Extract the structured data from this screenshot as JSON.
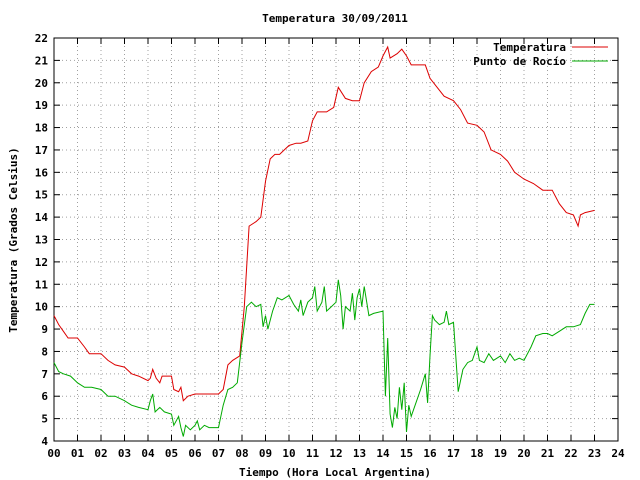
{
  "chart_data": {
    "type": "line",
    "title": "Temperatura 30/09/2011",
    "xlabel": "Tiempo (Hora Local Argentina)",
    "ylabel": "Temperatura (Grados Celsius)",
    "xlim": [
      0,
      24
    ],
    "ylim": [
      4,
      22
    ],
    "x_ticks": [
      0,
      1,
      2,
      3,
      4,
      5,
      6,
      7,
      8,
      9,
      10,
      11,
      12,
      13,
      14,
      15,
      16,
      17,
      18,
      19,
      20,
      21,
      22,
      23,
      24
    ],
    "x_tick_labels": [
      "00",
      "01",
      "02",
      "03",
      "04",
      "05",
      "06",
      "07",
      "08",
      "09",
      "10",
      "11",
      "12",
      "13",
      "14",
      "15",
      "16",
      "17",
      "18",
      "19",
      "20",
      "21",
      "22",
      "23",
      "24"
    ],
    "y_ticks": [
      4,
      5,
      6,
      7,
      8,
      9,
      10,
      11,
      12,
      13,
      14,
      15,
      16,
      17,
      18,
      19,
      20,
      21,
      22
    ],
    "y_tick_labels": [
      "4",
      "5",
      "6",
      "7",
      "8",
      "9",
      "10",
      "11",
      "12",
      "13",
      "14",
      "15",
      "16",
      "17",
      "18",
      "19",
      "20",
      "21",
      "22"
    ],
    "grid": true,
    "legend_position": "top-right",
    "series": [
      {
        "name": "Temperatura",
        "color": "#dd0000",
        "points": [
          [
            0.0,
            9.6
          ],
          [
            0.2,
            9.2
          ],
          [
            0.4,
            8.9
          ],
          [
            0.6,
            8.6
          ],
          [
            1.0,
            8.6
          ],
          [
            1.3,
            8.2
          ],
          [
            1.5,
            7.9
          ],
          [
            2.0,
            7.9
          ],
          [
            2.3,
            7.6
          ],
          [
            2.6,
            7.4
          ],
          [
            3.0,
            7.3
          ],
          [
            3.3,
            7.0
          ],
          [
            3.6,
            6.9
          ],
          [
            4.0,
            6.7
          ],
          [
            4.1,
            6.8
          ],
          [
            4.2,
            7.2
          ],
          [
            4.35,
            6.8
          ],
          [
            4.5,
            6.6
          ],
          [
            4.6,
            6.9
          ],
          [
            5.0,
            6.9
          ],
          [
            5.1,
            6.3
          ],
          [
            5.3,
            6.2
          ],
          [
            5.4,
            6.4
          ],
          [
            5.5,
            5.8
          ],
          [
            5.7,
            6.0
          ],
          [
            6.0,
            6.1
          ],
          [
            6.3,
            6.1
          ],
          [
            6.6,
            6.1
          ],
          [
            7.0,
            6.1
          ],
          [
            7.2,
            6.3
          ],
          [
            7.4,
            7.4
          ],
          [
            7.6,
            7.6
          ],
          [
            7.9,
            7.8
          ],
          [
            8.1,
            10.0
          ],
          [
            8.3,
            13.6
          ],
          [
            8.6,
            13.8
          ],
          [
            8.8,
            14.0
          ],
          [
            9.0,
            15.6
          ],
          [
            9.2,
            16.6
          ],
          [
            9.4,
            16.8
          ],
          [
            9.6,
            16.8
          ],
          [
            9.8,
            17.0
          ],
          [
            10.0,
            17.2
          ],
          [
            10.3,
            17.3
          ],
          [
            10.5,
            17.3
          ],
          [
            10.8,
            17.4
          ],
          [
            11.0,
            18.3
          ],
          [
            11.2,
            18.7
          ],
          [
            11.6,
            18.7
          ],
          [
            11.9,
            18.9
          ],
          [
            12.1,
            19.8
          ],
          [
            12.4,
            19.3
          ],
          [
            12.7,
            19.2
          ],
          [
            13.0,
            19.2
          ],
          [
            13.2,
            20.0
          ],
          [
            13.5,
            20.5
          ],
          [
            13.8,
            20.7
          ],
          [
            14.0,
            21.2
          ],
          [
            14.2,
            21.6
          ],
          [
            14.3,
            21.1
          ],
          [
            14.6,
            21.3
          ],
          [
            14.8,
            21.5
          ],
          [
            15.0,
            21.2
          ],
          [
            15.2,
            20.8
          ],
          [
            15.5,
            20.8
          ],
          [
            15.8,
            20.8
          ],
          [
            16.0,
            20.2
          ],
          [
            16.3,
            19.8
          ],
          [
            16.6,
            19.4
          ],
          [
            17.0,
            19.2
          ],
          [
            17.3,
            18.8
          ],
          [
            17.6,
            18.2
          ],
          [
            18.0,
            18.1
          ],
          [
            18.3,
            17.8
          ],
          [
            18.6,
            17.0
          ],
          [
            19.0,
            16.8
          ],
          [
            19.3,
            16.5
          ],
          [
            19.6,
            16.0
          ],
          [
            20.0,
            15.7
          ],
          [
            20.4,
            15.5
          ],
          [
            20.8,
            15.2
          ],
          [
            21.2,
            15.2
          ],
          [
            21.5,
            14.6
          ],
          [
            21.8,
            14.2
          ],
          [
            22.1,
            14.1
          ],
          [
            22.3,
            13.6
          ],
          [
            22.4,
            14.1
          ],
          [
            22.6,
            14.2
          ],
          [
            23.0,
            14.3
          ]
        ]
      },
      {
        "name": "Punto de Rocío",
        "color": "#00aa00",
        "points": [
          [
            0.0,
            7.5
          ],
          [
            0.2,
            7.1
          ],
          [
            0.4,
            7.0
          ],
          [
            0.7,
            6.9
          ],
          [
            1.0,
            6.6
          ],
          [
            1.3,
            6.4
          ],
          [
            1.6,
            6.4
          ],
          [
            2.0,
            6.3
          ],
          [
            2.3,
            6.0
          ],
          [
            2.6,
            6.0
          ],
          [
            3.0,
            5.8
          ],
          [
            3.3,
            5.6
          ],
          [
            3.6,
            5.5
          ],
          [
            4.0,
            5.4
          ],
          [
            4.1,
            5.8
          ],
          [
            4.2,
            6.1
          ],
          [
            4.3,
            5.3
          ],
          [
            4.5,
            5.5
          ],
          [
            4.7,
            5.3
          ],
          [
            5.0,
            5.2
          ],
          [
            5.1,
            4.7
          ],
          [
            5.3,
            5.1
          ],
          [
            5.4,
            4.6
          ],
          [
            5.5,
            4.2
          ],
          [
            5.6,
            4.7
          ],
          [
            5.8,
            4.5
          ],
          [
            6.0,
            4.7
          ],
          [
            6.1,
            4.9
          ],
          [
            6.2,
            4.5
          ],
          [
            6.4,
            4.7
          ],
          [
            6.6,
            4.6
          ],
          [
            6.8,
            4.6
          ],
          [
            7.0,
            4.6
          ],
          [
            7.2,
            5.6
          ],
          [
            7.4,
            6.3
          ],
          [
            7.6,
            6.4
          ],
          [
            7.8,
            6.6
          ],
          [
            8.0,
            8.4
          ],
          [
            8.2,
            10.0
          ],
          [
            8.4,
            10.2
          ],
          [
            8.6,
            10.0
          ],
          [
            8.8,
            10.1
          ],
          [
            8.9,
            9.1
          ],
          [
            9.0,
            9.6
          ],
          [
            9.1,
            9.0
          ],
          [
            9.3,
            9.8
          ],
          [
            9.5,
            10.4
          ],
          [
            9.7,
            10.3
          ],
          [
            10.0,
            10.5
          ],
          [
            10.2,
            10.1
          ],
          [
            10.4,
            9.8
          ],
          [
            10.5,
            10.3
          ],
          [
            10.6,
            9.6
          ],
          [
            10.8,
            10.2
          ],
          [
            11.0,
            10.4
          ],
          [
            11.1,
            10.9
          ],
          [
            11.2,
            9.8
          ],
          [
            11.4,
            10.2
          ],
          [
            11.5,
            10.9
          ],
          [
            11.6,
            9.8
          ],
          [
            11.8,
            10.0
          ],
          [
            12.0,
            10.2
          ],
          [
            12.1,
            11.2
          ],
          [
            12.2,
            10.5
          ],
          [
            12.3,
            9.0
          ],
          [
            12.4,
            10.0
          ],
          [
            12.6,
            9.8
          ],
          [
            12.7,
            10.6
          ],
          [
            12.8,
            9.4
          ],
          [
            12.9,
            10.4
          ],
          [
            13.0,
            10.8
          ],
          [
            13.1,
            10.0
          ],
          [
            13.2,
            10.9
          ],
          [
            13.4,
            9.6
          ],
          [
            13.6,
            9.7
          ],
          [
            14.0,
            9.8
          ],
          [
            14.1,
            6.0
          ],
          [
            14.2,
            8.6
          ],
          [
            14.3,
            5.2
          ],
          [
            14.4,
            4.6
          ],
          [
            14.5,
            5.5
          ],
          [
            14.6,
            5.0
          ],
          [
            14.7,
            6.4
          ],
          [
            14.8,
            5.4
          ],
          [
            14.9,
            6.6
          ],
          [
            15.0,
            4.4
          ],
          [
            15.1,
            5.6
          ],
          [
            15.2,
            5.1
          ],
          [
            15.4,
            5.7
          ],
          [
            15.6,
            6.3
          ],
          [
            15.8,
            7.0
          ],
          [
            15.9,
            5.7
          ],
          [
            16.0,
            7.8
          ],
          [
            16.1,
            9.6
          ],
          [
            16.2,
            9.4
          ],
          [
            16.4,
            9.2
          ],
          [
            16.6,
            9.3
          ],
          [
            16.7,
            9.8
          ],
          [
            16.8,
            9.2
          ],
          [
            17.0,
            9.3
          ],
          [
            17.2,
            6.2
          ],
          [
            17.4,
            7.2
          ],
          [
            17.6,
            7.5
          ],
          [
            17.8,
            7.6
          ],
          [
            18.0,
            8.2
          ],
          [
            18.1,
            7.6
          ],
          [
            18.3,
            7.5
          ],
          [
            18.5,
            7.9
          ],
          [
            18.7,
            7.6
          ],
          [
            19.0,
            7.8
          ],
          [
            19.2,
            7.5
          ],
          [
            19.4,
            7.9
          ],
          [
            19.6,
            7.6
          ],
          [
            19.8,
            7.7
          ],
          [
            20.0,
            7.6
          ],
          [
            20.3,
            8.2
          ],
          [
            20.5,
            8.7
          ],
          [
            20.8,
            8.8
          ],
          [
            21.0,
            8.8
          ],
          [
            21.2,
            8.7
          ],
          [
            21.5,
            8.9
          ],
          [
            21.8,
            9.1
          ],
          [
            22.1,
            9.1
          ],
          [
            22.4,
            9.2
          ],
          [
            22.6,
            9.7
          ],
          [
            22.8,
            10.1
          ],
          [
            23.0,
            10.1
          ]
        ]
      }
    ]
  }
}
